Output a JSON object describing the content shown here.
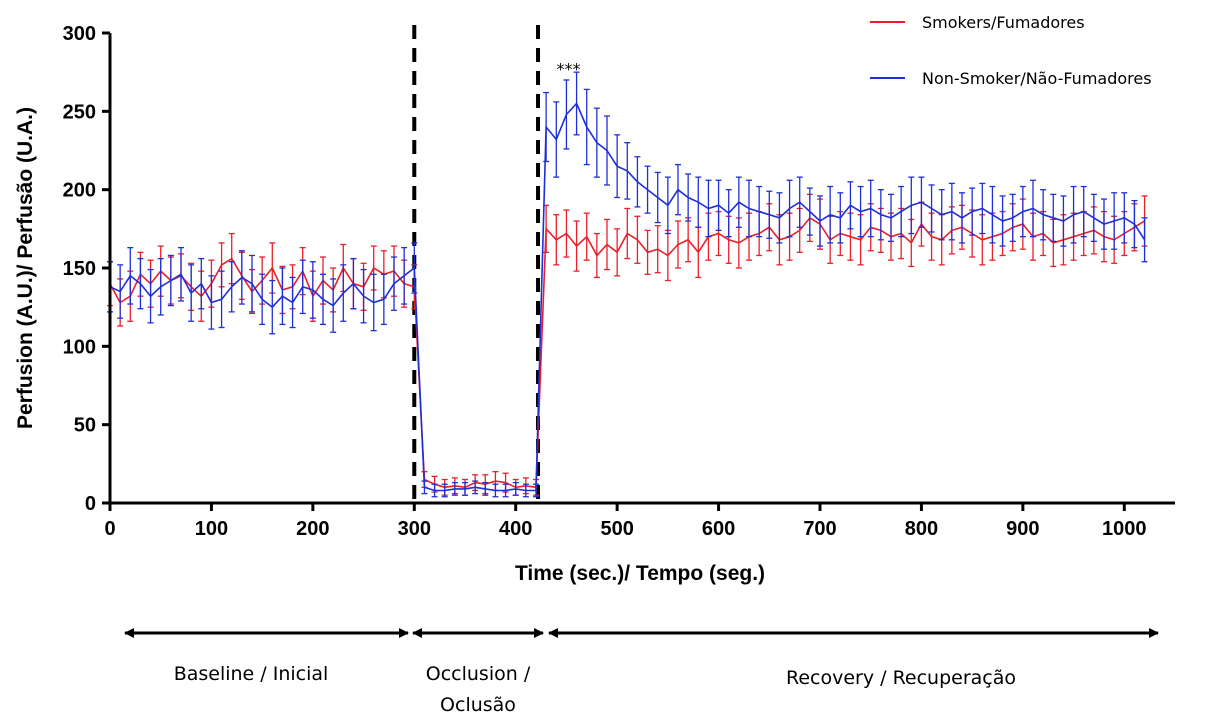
{
  "chart_data": {
    "type": "line",
    "xlabel": "Time (sec.)/ Tempo (seg.)",
    "ylabel": "Perfusion (A.U.)/ Perfusão (U.A.)",
    "xlim": [
      0,
      1050
    ],
    "ylim": [
      0,
      300
    ],
    "xticks": [
      "0",
      "100",
      "200",
      "300",
      "400",
      "500",
      "600",
      "700",
      "800",
      "900",
      "1000"
    ],
    "yticks": [
      "0",
      "50",
      "100",
      "150",
      "200",
      "250",
      "300"
    ],
    "grid": false,
    "legend_position": "top-right",
    "error_bars": true,
    "significance_marker": {
      "text": "***",
      "x": 452,
      "y": 280
    },
    "event_lines_x": [
      300,
      422
    ],
    "phases": [
      {
        "label": "Baseline / Inicial",
        "start": 0,
        "end": 300
      },
      {
        "label": "Occlusion /",
        "label2": "Oclusão",
        "start": 300,
        "end": 422
      },
      {
        "label": "Recovery / Recuperação",
        "start": 422,
        "end": 1020
      }
    ],
    "x": [
      0,
      10,
      20,
      30,
      40,
      50,
      60,
      70,
      80,
      90,
      100,
      110,
      120,
      130,
      140,
      150,
      160,
      170,
      180,
      190,
      200,
      210,
      220,
      230,
      240,
      250,
      260,
      270,
      280,
      290,
      300,
      310,
      320,
      330,
      340,
      350,
      360,
      370,
      380,
      390,
      400,
      410,
      420,
      430,
      440,
      450,
      460,
      470,
      480,
      490,
      500,
      510,
      520,
      530,
      540,
      550,
      560,
      570,
      580,
      590,
      600,
      610,
      620,
      630,
      640,
      650,
      660,
      670,
      680,
      690,
      700,
      710,
      720,
      730,
      740,
      750,
      760,
      770,
      780,
      790,
      800,
      810,
      820,
      830,
      840,
      850,
      860,
      870,
      880,
      890,
      900,
      910,
      920,
      930,
      940,
      950,
      960,
      970,
      980,
      990,
      1000,
      1010,
      1020
    ],
    "series": [
      {
        "name": "Smokers/Fumadores",
        "color": "#e8202a",
        "values": [
          140,
          128,
          132,
          146,
          140,
          148,
          142,
          145,
          138,
          132,
          140,
          152,
          156,
          145,
          135,
          142,
          150,
          136,
          138,
          148,
          132,
          142,
          136,
          150,
          140,
          138,
          150,
          146,
          148,
          140,
          138,
          15,
          12,
          10,
          11,
          10,
          13,
          12,
          14,
          13,
          10,
          11,
          10,
          175,
          168,
          172,
          164,
          170,
          158,
          165,
          160,
          172,
          168,
          160,
          162,
          158,
          165,
          168,
          160,
          170,
          172,
          168,
          166,
          170,
          172,
          176,
          168,
          170,
          174,
          182,
          178,
          168,
          172,
          170,
          168,
          176,
          174,
          170,
          172,
          166,
          178,
          170,
          168,
          174,
          176,
          172,
          168,
          170,
          172,
          176,
          178,
          170,
          172,
          166,
          168,
          170,
          172,
          174,
          170,
          168,
          172,
          176,
          180
        ],
        "errors": [
          14,
          15,
          16,
          14,
          15,
          16,
          15,
          14,
          15,
          16,
          15,
          14,
          16,
          15,
          14,
          15,
          16,
          15,
          14,
          15,
          16,
          15,
          14,
          15,
          16,
          15,
          14,
          15,
          16,
          15,
          14,
          5,
          5,
          5,
          5,
          5,
          5,
          6,
          6,
          6,
          5,
          5,
          5,
          15,
          16,
          15,
          16,
          15,
          14,
          16,
          15,
          16,
          15,
          14,
          15,
          16,
          15,
          14,
          16,
          15,
          14,
          15,
          16,
          15,
          14,
          15,
          16,
          15,
          14,
          15,
          16,
          15,
          14,
          15,
          16,
          15,
          14,
          15,
          16,
          15,
          14,
          15,
          16,
          15,
          14,
          15,
          16,
          15,
          14,
          15,
          16,
          15,
          14,
          15,
          16,
          15,
          14,
          15,
          16,
          15,
          14,
          15,
          16
        ]
      },
      {
        "name": "Non-Smoker/Não-Fumadores",
        "color": "#1f2fd6",
        "values": [
          138,
          135,
          145,
          140,
          132,
          138,
          142,
          146,
          134,
          140,
          128,
          130,
          138,
          144,
          140,
          130,
          125,
          132,
          128,
          138,
          136,
          130,
          126,
          134,
          140,
          132,
          128,
          130,
          140,
          145,
          150,
          10,
          8,
          8,
          9,
          9,
          10,
          9,
          8,
          8,
          9,
          8,
          8,
          240,
          232,
          248,
          255,
          240,
          230,
          225,
          215,
          212,
          205,
          200,
          195,
          190,
          200,
          195,
          192,
          188,
          190,
          185,
          192,
          188,
          186,
          184,
          182,
          188,
          192,
          186,
          180,
          184,
          182,
          190,
          186,
          188,
          184,
          182,
          186,
          190,
          192,
          188,
          184,
          186,
          182,
          186,
          188,
          184,
          180,
          182,
          186,
          188,
          184,
          182,
          180,
          184,
          186,
          182,
          178,
          180,
          182,
          178,
          168
        ],
        "errors": [
          16,
          17,
          18,
          16,
          17,
          18,
          16,
          17,
          18,
          16,
          17,
          18,
          16,
          17,
          18,
          16,
          17,
          18,
          16,
          17,
          18,
          16,
          17,
          18,
          16,
          17,
          18,
          16,
          17,
          18,
          16,
          4,
          4,
          4,
          4,
          4,
          4,
          4,
          4,
          4,
          4,
          4,
          4,
          22,
          24,
          22,
          20,
          24,
          22,
          22,
          20,
          18,
          16,
          15,
          16,
          18,
          16,
          15,
          16,
          18,
          16,
          15,
          16,
          18,
          16,
          15,
          16,
          18,
          16,
          15,
          16,
          18,
          16,
          15,
          16,
          18,
          16,
          15,
          16,
          18,
          16,
          15,
          16,
          18,
          16,
          15,
          16,
          18,
          16,
          15,
          16,
          18,
          16,
          15,
          16,
          18,
          16,
          15,
          16,
          18,
          16,
          15,
          14
        ]
      }
    ]
  }
}
